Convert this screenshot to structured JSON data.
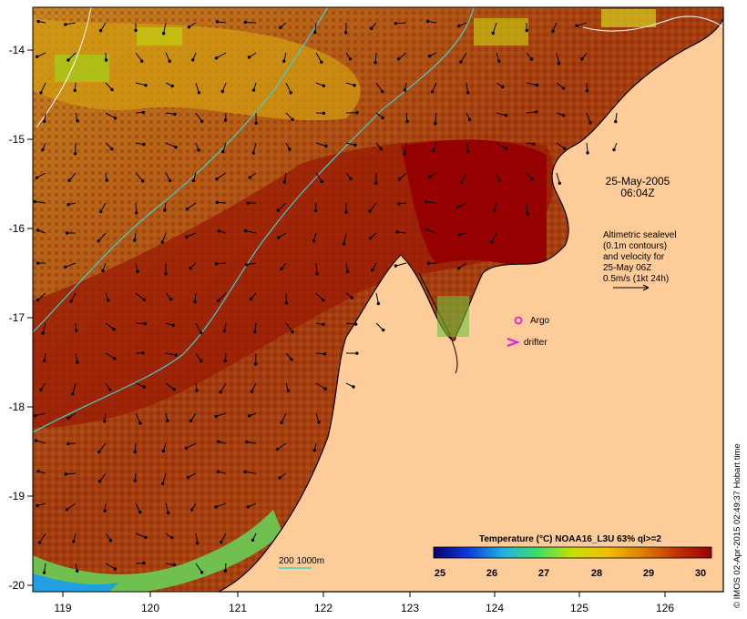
{
  "map": {
    "title": "25-May-2005",
    "time": "06:04Z",
    "lon_ticks": [
      "119",
      "120",
      "121",
      "122",
      "123",
      "124",
      "125",
      "126"
    ],
    "lat_ticks": [
      "-14",
      "-15",
      "-16",
      "-17",
      "-18",
      "-19",
      "-20"
    ],
    "altimetry_note": {
      "line1": "Altimetric sealevel",
      "line2": "(0.1m contours)",
      "line3": "and velocity for",
      "line4": "25-May 06Z",
      "line5": "0.5m/s (1kt 24h)"
    },
    "legend": {
      "argo": "Argo",
      "drifter": "drifter"
    },
    "depth_contours": "200  1000m",
    "colorbar": {
      "title": "Temperature (°C) NOAA16_L3U 63% ql>=2",
      "labels": [
        "25",
        "26",
        "27",
        "28",
        "29",
        "30"
      ],
      "colors": [
        "#08006f",
        "#0c39d6",
        "#1fb1e6",
        "#40e060",
        "#c8e000",
        "#f0c000",
        "#e08000",
        "#c03000",
        "#980000"
      ]
    },
    "credit": "© IMOS 02-Apr-2015 02:49:37 Hobart time"
  }
}
